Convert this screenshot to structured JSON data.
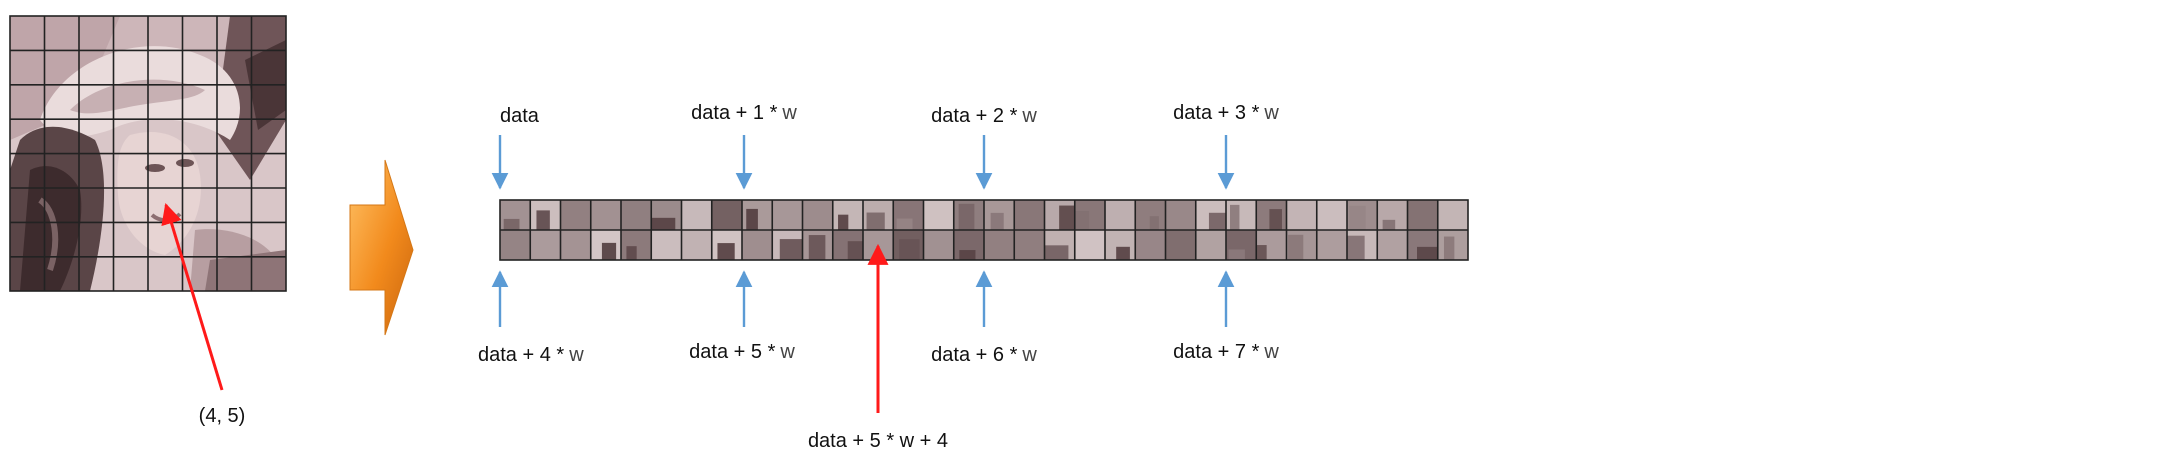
{
  "source_image": {
    "grid_cols": 8,
    "grid_rows": 8,
    "pointer_label": "(4, 5)"
  },
  "memory_strip": {
    "row_count": 2,
    "cells_per_row": 32
  },
  "top_labels": [
    {
      "prefix": "data",
      "suffix": ""
    },
    {
      "prefix": "data + 1 *",
      "suffix": "w"
    },
    {
      "prefix": "data + 2 *",
      "suffix": "w"
    },
    {
      "prefix": "data + 3 *",
      "suffix": "w"
    }
  ],
  "bottom_labels": [
    {
      "prefix": "data + 4 *",
      "suffix": "w"
    },
    {
      "prefix": "data + 5 *",
      "suffix": "w"
    },
    {
      "prefix": "data + 6 *",
      "suffix": "w"
    },
    {
      "prefix": "data + 7 *",
      "suffix": "w"
    }
  ],
  "pointer_target_label": "data + 5 * w + 4",
  "colors": {
    "pixel_tone_light": "#e9dddd",
    "pixel_tone_dark": "#5a4547",
    "grid_line": "#222222",
    "arrow_blue": "#5b9bd5",
    "arrow_red": "#ff1a1a",
    "transform_arrow": "#f08c1c"
  }
}
